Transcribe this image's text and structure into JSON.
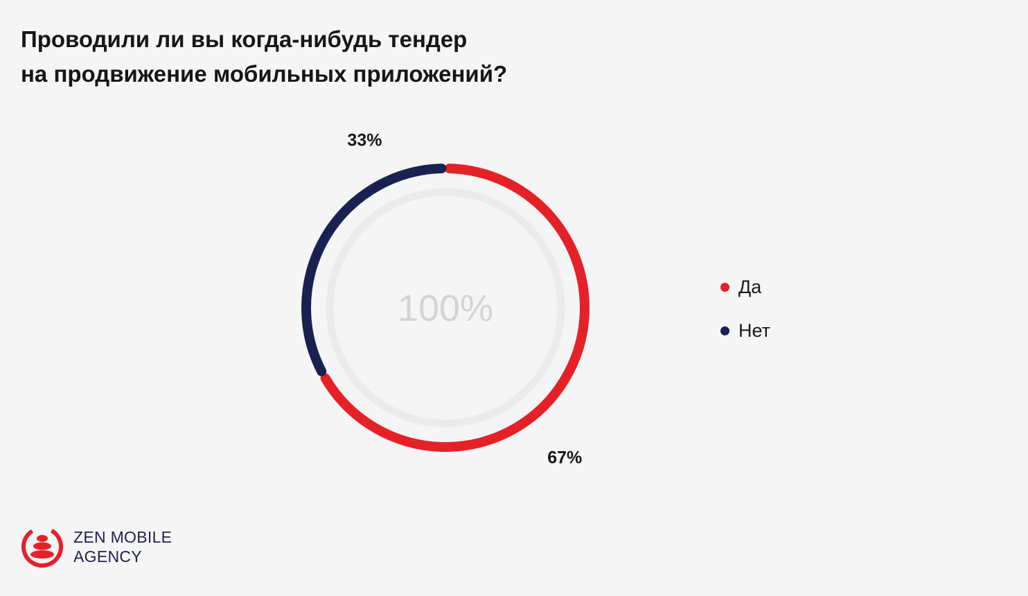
{
  "title": {
    "line1": "Проводили ли вы когда-нибудь тендер",
    "line2": "на продвижение мобильных приложений?"
  },
  "chart_data": {
    "type": "pie",
    "style": "donut",
    "center_label": "100%",
    "categories": [
      "Да",
      "Нет"
    ],
    "values": [
      67,
      33
    ],
    "data_labels": [
      "67%",
      "33%"
    ],
    "colors": [
      "#e52128",
      "#192150"
    ],
    "legend": "right"
  },
  "logo": {
    "line1": "ZEN MOBILE",
    "line2": "AGENCY"
  },
  "colors": {
    "inner_ring": "#ebebeb",
    "center_text": "#d4d4d4",
    "brand_red": "#e52128",
    "brand_navy": "#192150"
  }
}
